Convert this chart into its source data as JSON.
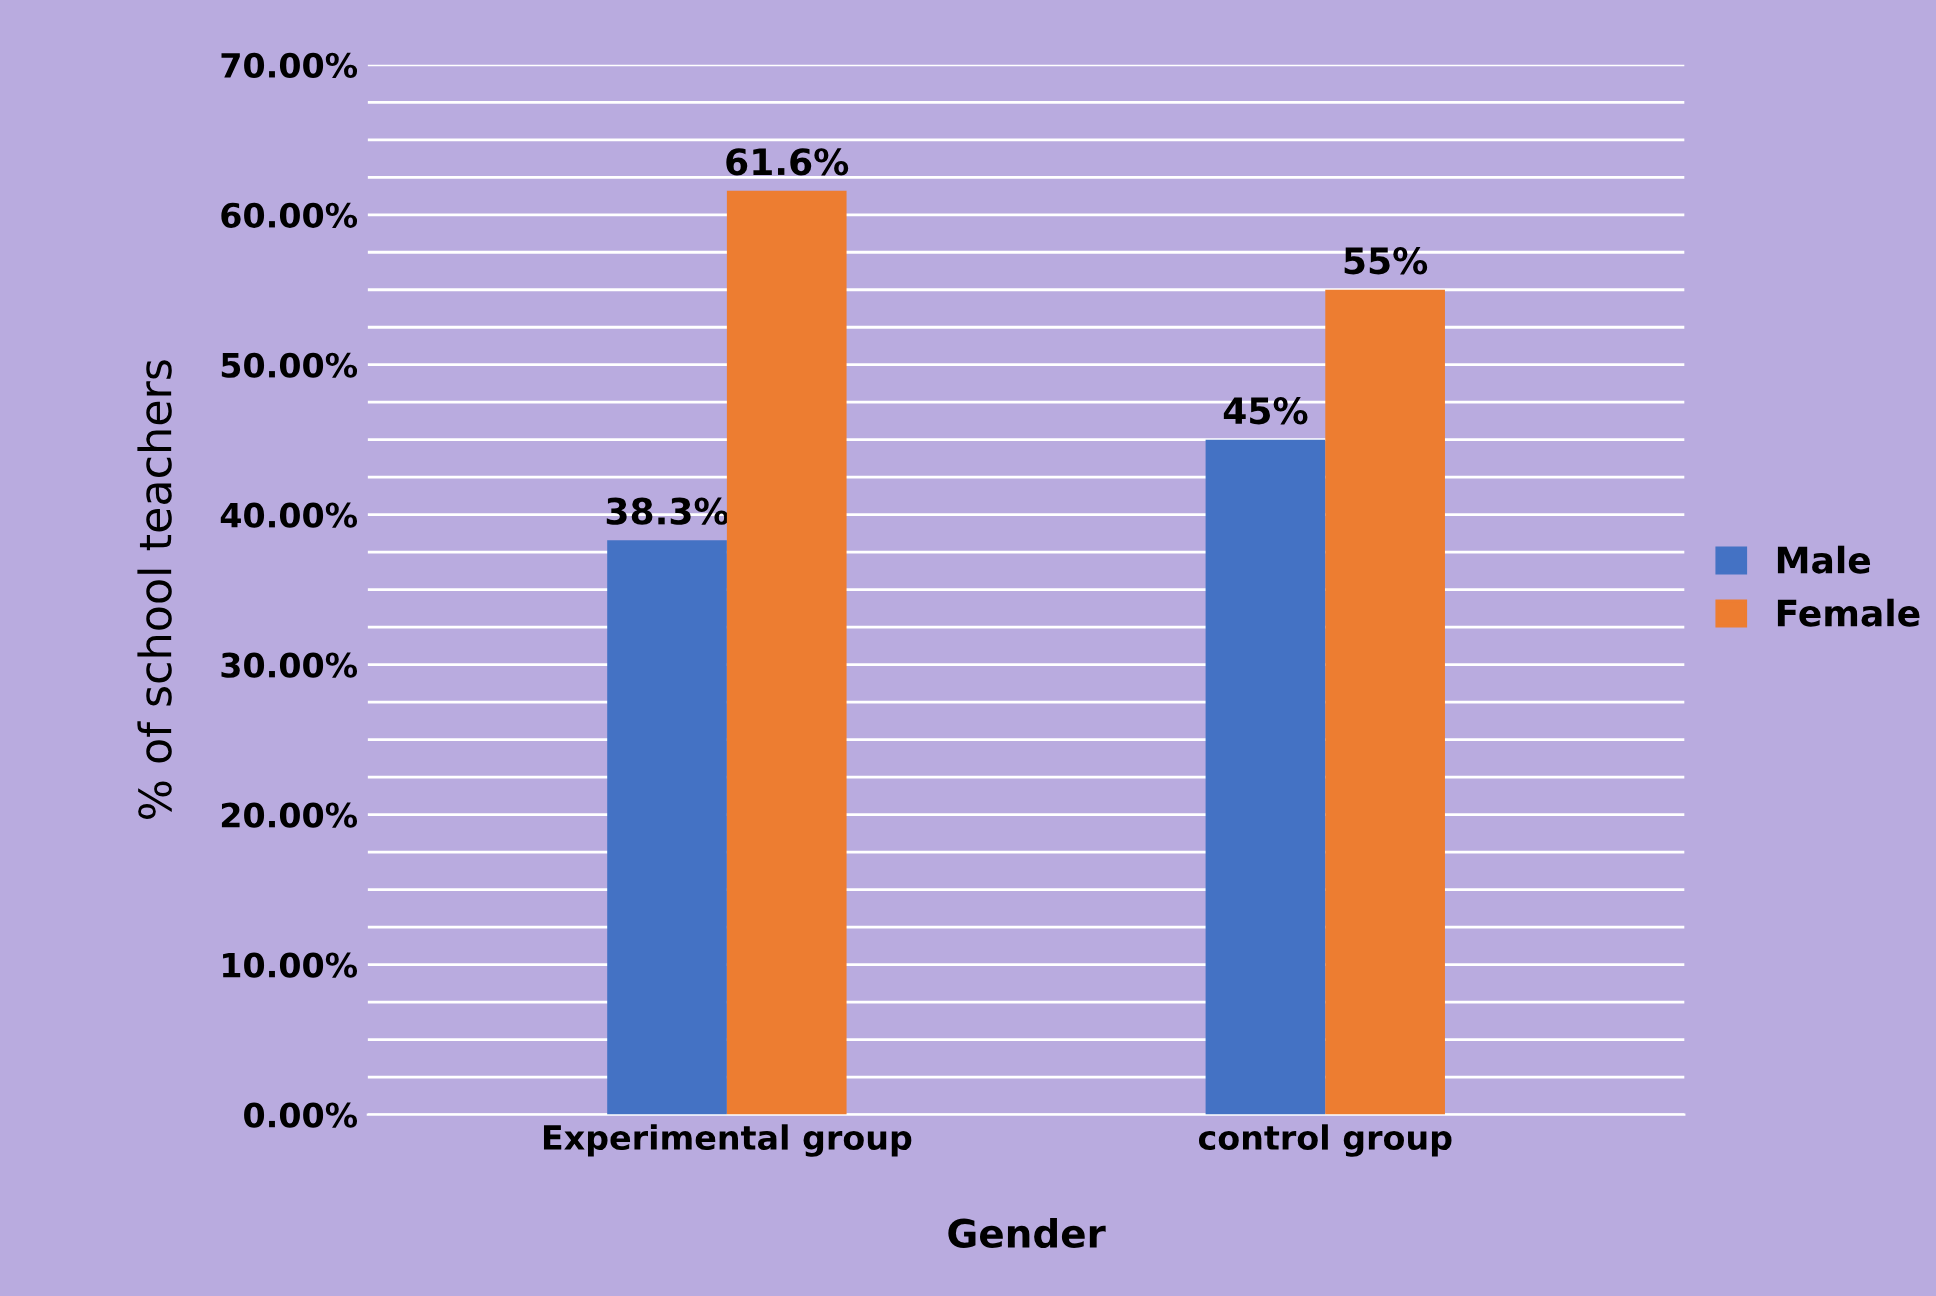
{
  "chart_data": {
    "type": "bar",
    "xlabel": "Gender",
    "ylabel": "% of school teachers",
    "categories": [
      "Experimental group",
      "control group"
    ],
    "series": [
      {
        "name": "Male",
        "color": "#4472c4",
        "values": [
          38.3,
          45
        ],
        "value_labels": [
          "38.3%",
          "45%"
        ]
      },
      {
        "name": "Female",
        "color": "#ed7d31",
        "values": [
          61.6,
          55
        ],
        "value_labels": [
          "61.6%",
          "55%"
        ]
      }
    ],
    "ylim": [
      0,
      70
    ],
    "yticks": [
      {
        "value": 0,
        "label": "0.00%"
      },
      {
        "value": 2.5,
        "label": null
      },
      {
        "value": 5,
        "label": null
      },
      {
        "value": 7.5,
        "label": null
      },
      {
        "value": 10,
        "label": "10.00%"
      },
      {
        "value": 12.5,
        "label": null
      },
      {
        "value": 15,
        "label": null
      },
      {
        "value": 17.5,
        "label": null
      },
      {
        "value": 20,
        "label": "20.00%"
      },
      {
        "value": 22.5,
        "label": null
      },
      {
        "value": 25,
        "label": null
      },
      {
        "value": 27.5,
        "label": null
      },
      {
        "value": 30,
        "label": "30.00%"
      },
      {
        "value": 32.5,
        "label": null
      },
      {
        "value": 35,
        "label": null
      },
      {
        "value": 37.5,
        "label": null
      },
      {
        "value": 40,
        "label": "40.00%"
      },
      {
        "value": 42.5,
        "label": null
      },
      {
        "value": 45,
        "label": null
      },
      {
        "value": 47.5,
        "label": null
      },
      {
        "value": 50,
        "label": "50.00%"
      },
      {
        "value": 52.5,
        "label": null
      },
      {
        "value": 55,
        "label": null
      },
      {
        "value": 57.5,
        "label": null
      },
      {
        "value": 60,
        "label": "60.00%"
      },
      {
        "value": 62.5,
        "label": null
      },
      {
        "value": 65,
        "label": null
      },
      {
        "value": 67.5,
        "label": null
      },
      {
        "value": 70,
        "label": "70.00%"
      }
    ],
    "grid": "y",
    "legend": "right"
  }
}
